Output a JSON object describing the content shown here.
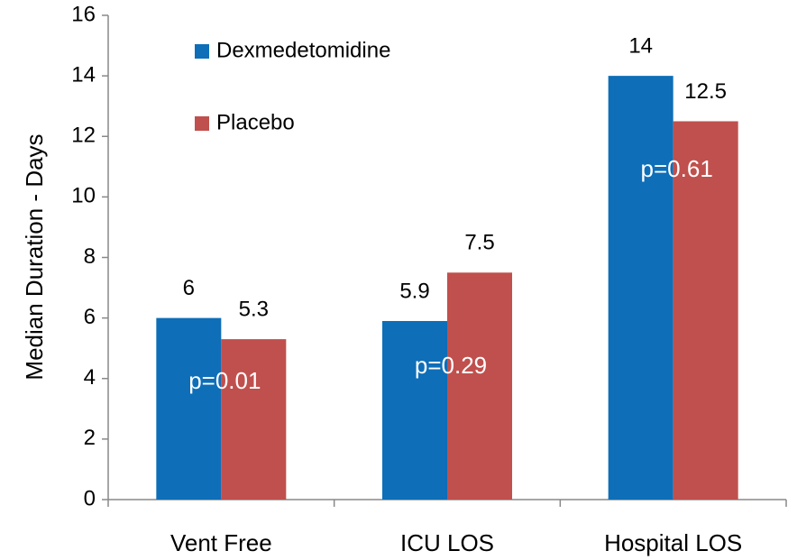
{
  "chart_data": {
    "type": "bar",
    "y_label": "Median Duration - Days",
    "categories": [
      "Vent Free",
      "ICU LOS",
      "Hospital LOS"
    ],
    "series": [
      {
        "name": "Dexmedetomidine",
        "color": "#0e6eb8",
        "values": [
          6,
          5.9,
          14
        ]
      },
      {
        "name": "Placebo",
        "color": "#c0504d",
        "values": [
          5.3,
          7.5,
          12.5
        ]
      }
    ],
    "annotations": [
      "p=0.01",
      "p=0.29",
      "p=0.61"
    ],
    "ylim": [
      0,
      16
    ],
    "yticks": [
      0,
      2,
      4,
      6,
      8,
      10,
      12,
      14,
      16
    ],
    "legend": "top-left"
  }
}
